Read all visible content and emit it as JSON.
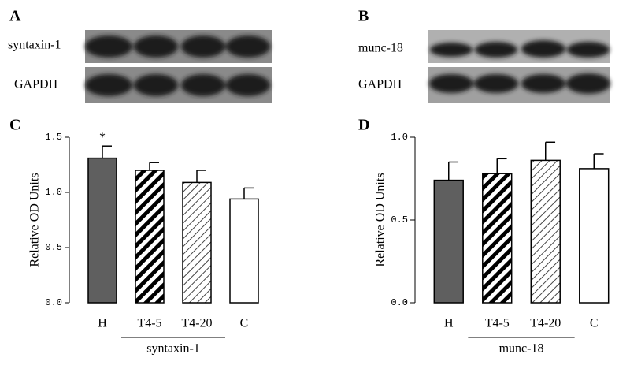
{
  "blots": [
    {
      "panel": "A",
      "rows": [
        "syntaxin-1",
        "GAPDH"
      ]
    },
    {
      "panel": "B",
      "rows": [
        "munc-18",
        "GAPDH"
      ]
    }
  ],
  "chart_data": [
    {
      "type": "bar",
      "panel": "C",
      "ylabel": "Relative OD Units",
      "categories": [
        "H",
        "T4-5",
        "T4-20",
        "C"
      ],
      "values": [
        1.31,
        1.2,
        1.09,
        0.94
      ],
      "errors": [
        0.11,
        0.07,
        0.11,
        0.1
      ],
      "significance_labels": [
        "*",
        null,
        null,
        null
      ],
      "group_label": "syntaxin-1",
      "fills": [
        "solid",
        "thick-hatch",
        "thin-hatch",
        "empty"
      ],
      "ylim": [
        0,
        1.5
      ],
      "yticks": [
        {
          "value": 0,
          "label": "0.0"
        },
        {
          "value": 0.5,
          "label": "0.5"
        },
        {
          "value": 1,
          "label": "1.0"
        },
        {
          "value": 1.5,
          "label": "1.5"
        }
      ]
    },
    {
      "type": "bar",
      "panel": "D",
      "ylabel": "Relative OD Units",
      "categories": [
        "H",
        "T4-5",
        "T4-20",
        "C"
      ],
      "values": [
        0.74,
        0.78,
        0.86,
        0.81
      ],
      "errors": [
        0.11,
        0.09,
        0.11,
        0.09
      ],
      "group_label": "munc-18",
      "fills": [
        "solid",
        "thick-hatch",
        "thin-hatch",
        "empty"
      ],
      "ylim": [
        0,
        1
      ],
      "yticks": [
        {
          "value": 0,
          "label": "0.0"
        },
        {
          "value": 0.5,
          "label": "0.5"
        },
        {
          "value": 1,
          "label": "1.0"
        }
      ]
    }
  ]
}
